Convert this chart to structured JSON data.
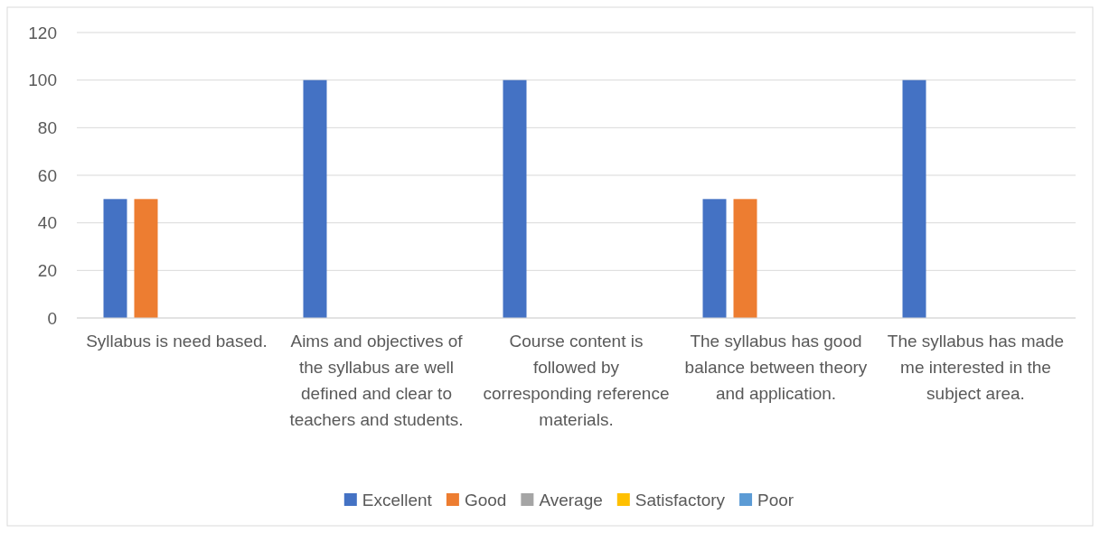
{
  "chart_data": {
    "type": "bar",
    "categories": [
      "Syllabus is need based.",
      "Aims and objectives of the syllabus are well defined and clear to teachers and students.",
      "Course content is followed by corresponding reference materials.",
      "The syllabus has good balance between theory and application.",
      "The syllabus has made me interested in the subject area."
    ],
    "series": [
      {
        "name": "Excellent",
        "color": "#4472c4",
        "values": [
          50,
          100,
          100,
          50,
          100
        ]
      },
      {
        "name": "Good",
        "color": "#ed7d31",
        "values": [
          50,
          0,
          0,
          50,
          0
        ]
      },
      {
        "name": "Average",
        "color": "#a5a5a5",
        "values": [
          0,
          0,
          0,
          0,
          0
        ]
      },
      {
        "name": "Satisfactory",
        "color": "#ffc000",
        "values": [
          0,
          0,
          0,
          0,
          0
        ]
      },
      {
        "name": "Poor",
        "color": "#5b9bd5",
        "values": [
          0,
          0,
          0,
          0,
          0
        ]
      }
    ],
    "ylim": [
      0,
      120
    ],
    "yticks": [
      0,
      20,
      40,
      60,
      80,
      100,
      120
    ],
    "grid": "y",
    "legend": "bottom"
  }
}
